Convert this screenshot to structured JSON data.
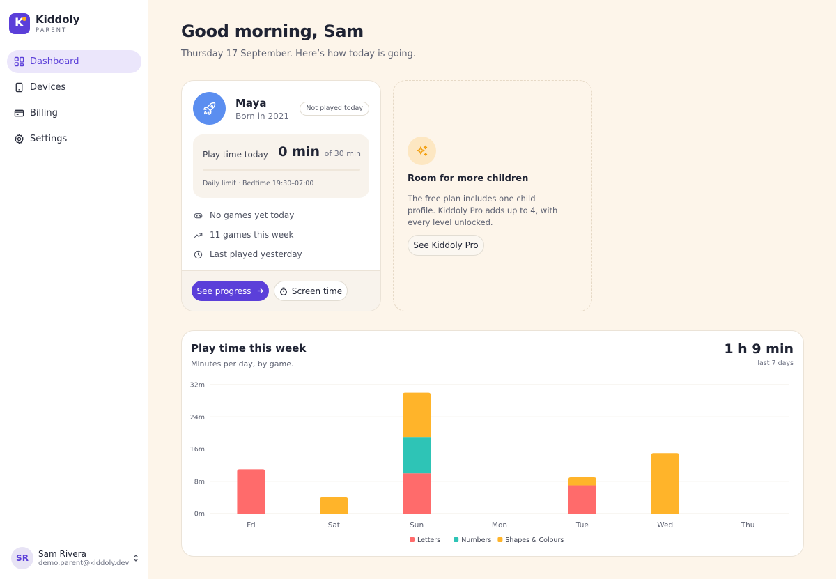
{
  "brand": {
    "initial": "K",
    "name": "Kiddoly",
    "sub": "PARENT"
  },
  "nav": [
    {
      "label": "Dashboard",
      "icon": "dashboard-icon",
      "active": true
    },
    {
      "label": "Devices",
      "icon": "device-icon",
      "active": false
    },
    {
      "label": "Billing",
      "icon": "card-icon",
      "active": false
    },
    {
      "label": "Settings",
      "icon": "gear-icon",
      "active": false
    }
  ],
  "user": {
    "initials": "SR",
    "name": "Sam Rivera",
    "email": "demo.parent@kiddoly.dev"
  },
  "header": {
    "greeting": "Good morning, Sam",
    "date_line": "Thursday 17 September. Here’s how today is going."
  },
  "child": {
    "name": "Maya",
    "born": "Born in 2021",
    "badge": "Not played today",
    "play_label": "Play time today",
    "play_value": "0 min",
    "play_of": "of 30 min",
    "play_fraction": 0,
    "play_meta": "Daily limit · Bedtime 19:30–07:00",
    "stats": [
      "No games yet today",
      "11 games this week",
      "Last played yesterday"
    ],
    "progress_button": "See progress",
    "screen_time_button": "Screen time"
  },
  "upsell": {
    "title": "Room for more children",
    "text": "The free plan includes one child profile. Kiddoly Pro adds up to 4, with every level unlocked.",
    "button": "See Kiddoly Pro"
  },
  "chart_card": {
    "title": "Play time this week",
    "subtitle": "Minutes per day, by game.",
    "total": "1 h 9 min",
    "range": "last 7 days"
  },
  "colors": {
    "accent": "#5b3fd9",
    "letters": "#ff6b6b",
    "numbers": "#2ec4b6",
    "shapes": "#ffb42a"
  },
  "chart_data": {
    "type": "bar",
    "stacked": true,
    "categories": [
      "Fri",
      "Sat",
      "Sun",
      "Mon",
      "Tue",
      "Wed",
      "Thu"
    ],
    "series": [
      {
        "name": "Letters",
        "color": "#ff6b6b",
        "values": [
          11,
          0,
          10,
          0,
          7,
          0,
          0
        ]
      },
      {
        "name": "Numbers",
        "color": "#2ec4b6",
        "values": [
          0,
          0,
          9,
          0,
          0,
          0,
          0
        ]
      },
      {
        "name": "Shapes & Colours",
        "color": "#ffb42a",
        "values": [
          0,
          4,
          11,
          0,
          2,
          15,
          0
        ]
      }
    ],
    "y_ticks": [
      "0m",
      "8m",
      "16m",
      "24m",
      "32m"
    ],
    "ylim": [
      0,
      32
    ],
    "grid": true,
    "legend": "bottom-center"
  }
}
